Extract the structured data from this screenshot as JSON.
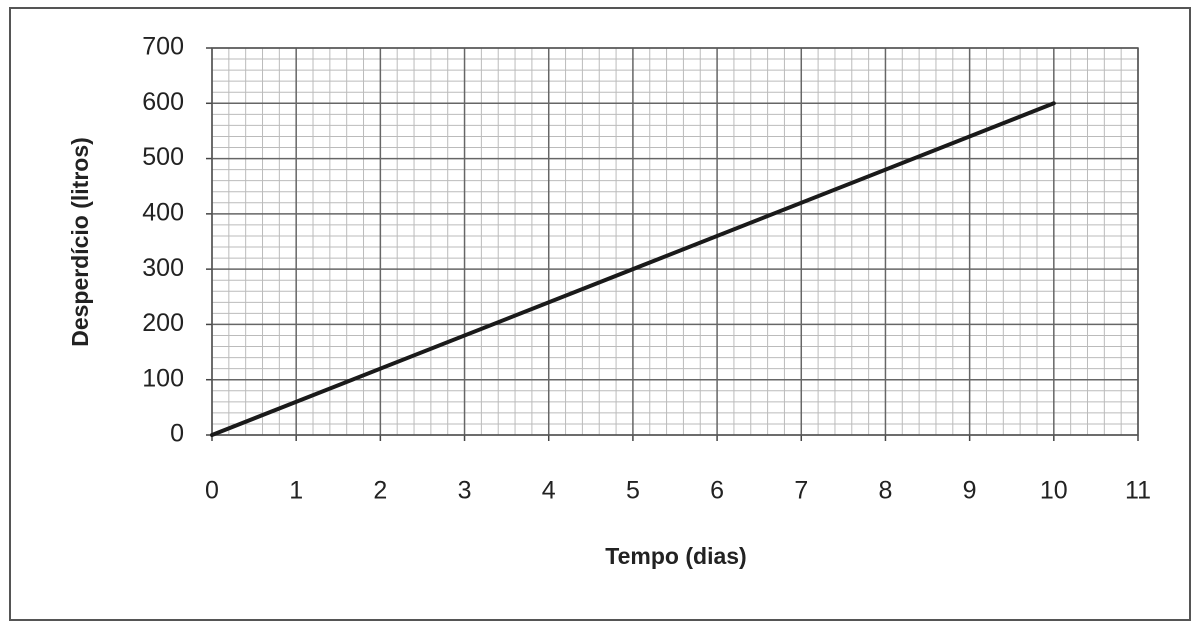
{
  "chart_data": {
    "type": "line",
    "x_label": "Tempo (dias)",
    "y_label": "Desperdício (litros)",
    "series": [
      {
        "name": "Desperdício",
        "color": "#1a1a1a",
        "x": [
          0,
          10
        ],
        "values": [
          0,
          600
        ]
      }
    ],
    "xlim": [
      0,
      11
    ],
    "xticks": [
      0,
      1,
      2,
      3,
      4,
      5,
      6,
      7,
      8,
      9,
      10,
      11
    ],
    "ylim": [
      0,
      700
    ],
    "yticks": [
      0,
      100,
      200,
      300,
      400,
      500,
      600,
      700
    ],
    "grid": true
  }
}
